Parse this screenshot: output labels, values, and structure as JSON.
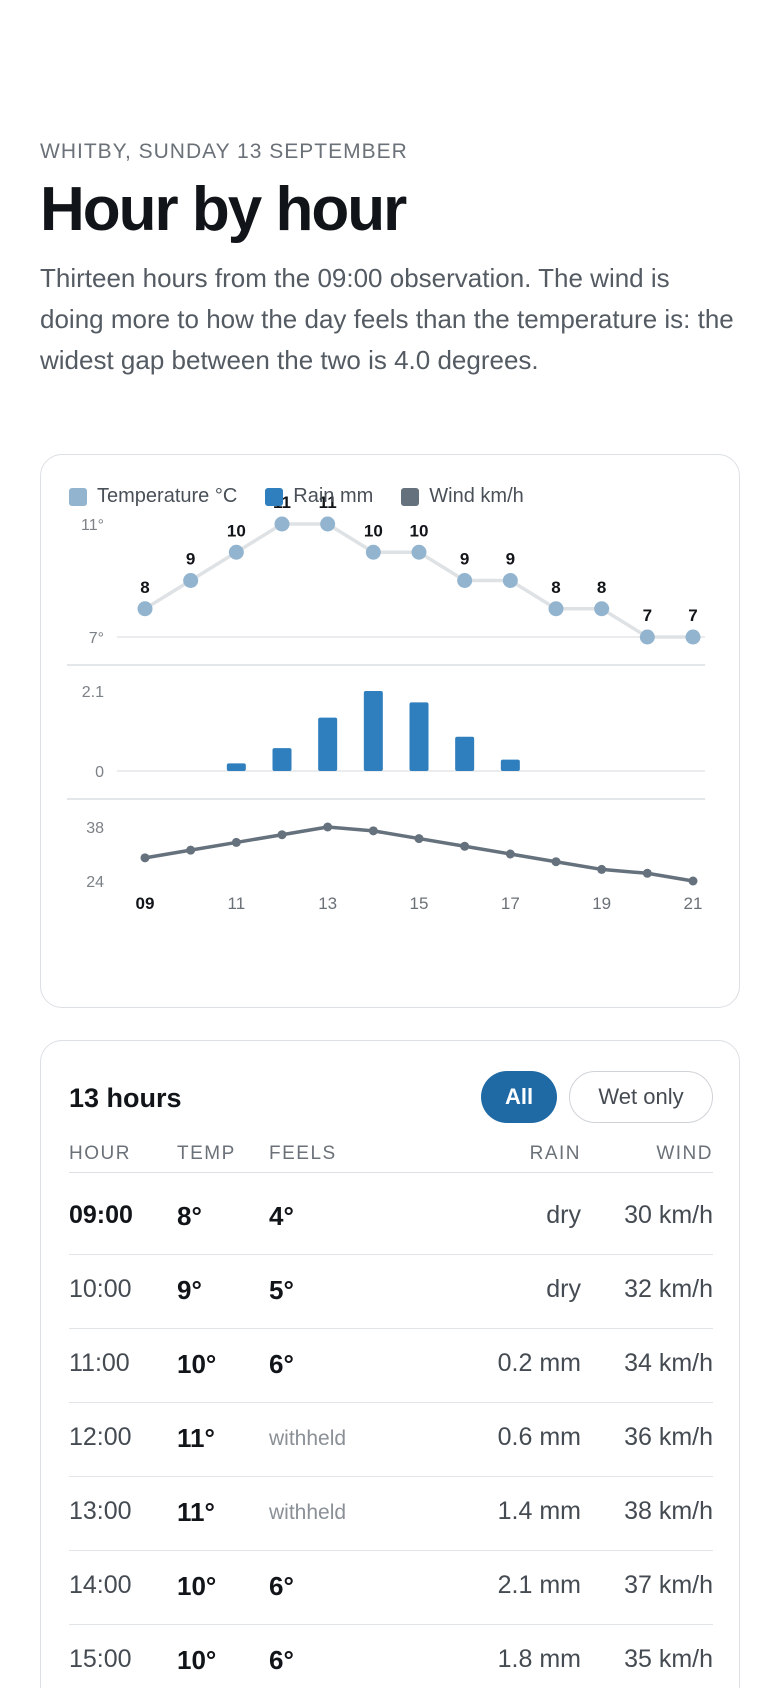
{
  "header": {
    "eyebrow": "WHITBY, SUNDAY 13 SEPTEMBER",
    "title": "Hour by hour",
    "intro": "Thirteen hours from the 09:00 observation. The wind is doing more to how the day feels than the temperature is: the widest gap between the two is 4.0 degrees."
  },
  "legend": [
    {
      "label": "Temperature °C",
      "color": "#93b4cf"
    },
    {
      "label": "Rain mm",
      "color": "#2f7ebd"
    },
    {
      "label": "Wind km/h",
      "color": "#65717c"
    }
  ],
  "chart_data": {
    "type": "line",
    "x": [
      "09",
      "10",
      "11",
      "12",
      "13",
      "14",
      "15",
      "16",
      "17",
      "18",
      "19",
      "20",
      "21"
    ],
    "x_tick_labels": [
      "09",
      "11",
      "13",
      "15",
      "17",
      "19",
      "21"
    ],
    "series": [
      {
        "name": "Temperature °C",
        "type": "line",
        "values": [
          8,
          9,
          10,
          11,
          11,
          10,
          10,
          9,
          9,
          8,
          8,
          7,
          7
        ],
        "ylim": [
          7,
          11
        ],
        "tick_labels": [
          "11°",
          "7°"
        ]
      },
      {
        "name": "Rain mm",
        "type": "bar",
        "values": [
          0,
          0,
          0.2,
          0.6,
          1.4,
          2.1,
          1.8,
          0.9,
          0.3,
          0,
          0,
          0,
          0
        ],
        "ylim": [
          0,
          2.1
        ],
        "tick_labels": [
          "2.1",
          "0"
        ]
      },
      {
        "name": "Wind km/h",
        "type": "line",
        "values": [
          30,
          32,
          34,
          36,
          38,
          37,
          35,
          33,
          31,
          29,
          27,
          26,
          24
        ],
        "ylim": [
          24,
          38
        ],
        "tick_labels": [
          "38",
          "24"
        ]
      }
    ]
  },
  "table": {
    "count_label": "13 hours",
    "filters": {
      "all": "All",
      "wet": "Wet only"
    },
    "columns": {
      "hour": "HOUR",
      "temp": "TEMP",
      "feels": "FEELS",
      "rain": "RAIN",
      "wind": "WIND"
    },
    "rows": [
      {
        "hour": "09:00",
        "temp": "8°",
        "feels": "4°",
        "rain": "dry",
        "wind": "30 km/h"
      },
      {
        "hour": "10:00",
        "temp": "9°",
        "feels": "5°",
        "rain": "dry",
        "wind": "32 km/h"
      },
      {
        "hour": "11:00",
        "temp": "10°",
        "feels": "6°",
        "rain": "0.2 mm",
        "wind": "34 km/h"
      },
      {
        "hour": "12:00",
        "temp": "11°",
        "feels": "withheld",
        "rain": "0.6 mm",
        "wind": "36 km/h"
      },
      {
        "hour": "13:00",
        "temp": "11°",
        "feels": "withheld",
        "rain": "1.4 mm",
        "wind": "38 km/h"
      },
      {
        "hour": "14:00",
        "temp": "10°",
        "feels": "6°",
        "rain": "2.1 mm",
        "wind": "37 km/h"
      },
      {
        "hour": "15:00",
        "temp": "10°",
        "feels": "6°",
        "rain": "1.8 mm",
        "wind": "35 km/h"
      }
    ]
  }
}
